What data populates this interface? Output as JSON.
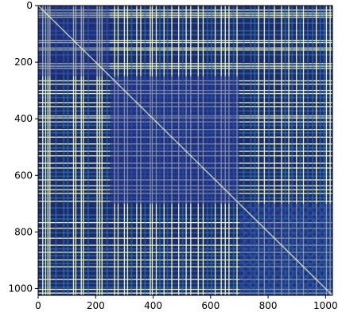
{
  "chart_data": {
    "type": "heatmap",
    "title": "",
    "xlabel": "",
    "ylabel": "",
    "xlim": [
      0,
      1023
    ],
    "ylim": [
      1023,
      0
    ],
    "x_ticks": [
      0,
      200,
      400,
      600,
      800,
      1000
    ],
    "y_ticks": [
      0,
      200,
      400,
      600,
      800,
      1000
    ],
    "x_tick_labels": [
      "0",
      "200",
      "400",
      "600",
      "800",
      "1000"
    ],
    "y_tick_labels": [
      "0",
      "200",
      "400",
      "600",
      "800",
      "1000"
    ],
    "colormap": "YlGnBu (reversed, dark navy = low, pale yellow = high)",
    "colorbar": false,
    "grid": false,
    "matrix_size": 1024,
    "symmetric": true,
    "diagonal_value": "high",
    "bright_stripe_positions": [
      16,
      26,
      34,
      41,
      123,
      131,
      150,
      157,
      205,
      214,
      222,
      266,
      278,
      300,
      311,
      343,
      357,
      390,
      397,
      411,
      438,
      465,
      489,
      515,
      531,
      557,
      574,
      616,
      637,
      651,
      664,
      692,
      767,
      787,
      822,
      847,
      872,
      899,
      923,
      968,
      1003,
      1016
    ],
    "medium_stripe_positions": [
      62,
      89,
      103,
      174,
      240,
      325,
      372,
      423,
      450,
      503,
      589,
      603,
      680,
      715,
      740,
      754,
      803,
      860,
      884,
      912,
      938,
      955,
      982,
      995
    ],
    "region_texture": [
      {
        "range": [
          0,
          250
        ],
        "pattern": "dark with faint checkered texture"
      },
      {
        "range": [
          250,
          700
        ],
        "pattern": "dense bright stripes with block texture along diagonal"
      },
      {
        "range": [
          700,
          1023
        ],
        "pattern": "checkerboard texture with periodic bright stripes"
      }
    ],
    "colors": {
      "low": "#1f2a6b",
      "mid_low": "#253494",
      "mid": "#2c7fb8",
      "mid_high": "#41b6c4",
      "high": "#c7e9b4",
      "max": "#f2f8cc"
    }
  }
}
